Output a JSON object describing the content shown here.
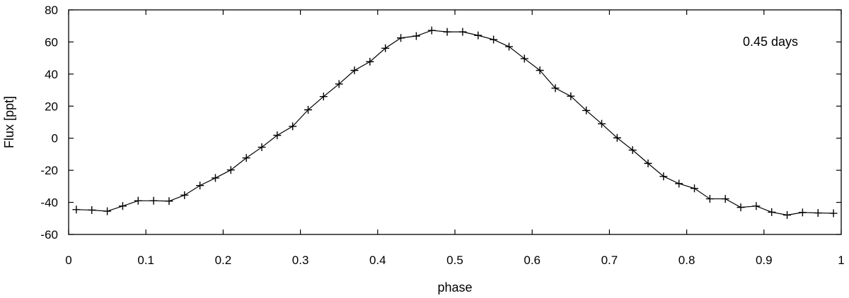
{
  "chart_data": {
    "type": "line",
    "title": "",
    "xlabel": "phase",
    "ylabel": "Flux [ppt]",
    "xlim": [
      0,
      1
    ],
    "ylim": [
      -60,
      80
    ],
    "x_ticks": [
      0,
      0.1,
      0.2,
      0.3,
      0.4,
      0.5,
      0.6,
      0.7,
      0.8,
      0.9,
      1
    ],
    "x_tick_labels": [
      "0",
      "0.1",
      "0.2",
      "0.3",
      "0.4",
      "0.5",
      "0.6",
      "0.7",
      "0.8",
      "0.9",
      "1"
    ],
    "y_ticks": [
      -60,
      -40,
      -20,
      0,
      20,
      40,
      60,
      80
    ],
    "y_tick_labels": [
      "-60",
      "-40",
      "-20",
      "0",
      "20",
      "40",
      "60",
      "80"
    ],
    "grid": false,
    "annotation": "0.45 days",
    "series": [
      {
        "marker": "plus",
        "color": "#000000",
        "x": [
          0.01,
          0.03,
          0.05,
          0.07,
          0.09,
          0.11,
          0.13,
          0.15,
          0.17,
          0.19,
          0.21,
          0.23,
          0.25,
          0.27,
          0.29,
          0.31,
          0.33,
          0.35,
          0.37,
          0.39,
          0.41,
          0.43,
          0.45,
          0.47,
          0.49,
          0.51,
          0.53,
          0.55,
          0.57,
          0.59,
          0.61,
          0.63,
          0.65,
          0.67,
          0.69,
          0.71,
          0.73,
          0.75,
          0.77,
          0.79,
          0.81,
          0.83,
          0.85,
          0.87,
          0.89,
          0.91,
          0.93,
          0.95,
          0.97,
          0.99
        ],
        "y": [
          -44.5,
          -44.8,
          -45.5,
          -42.3,
          -39.0,
          -39.0,
          -39.2,
          -35.5,
          -29.5,
          -24.8,
          -19.8,
          -12.3,
          -5.6,
          1.8,
          7.4,
          17.7,
          26.0,
          33.8,
          42.3,
          47.7,
          56.1,
          62.5,
          63.7,
          67.2,
          66.3,
          66.3,
          64.1,
          61.5,
          57.1,
          49.6,
          42.3,
          31.2,
          26.2,
          17.3,
          9.0,
          0.2,
          -7.4,
          -15.7,
          -23.8,
          -28.3,
          -31.3,
          -37.8,
          -37.8,
          -43.1,
          -42.3,
          -46.1,
          -47.9,
          -46.3,
          -46.6,
          -46.8
        ]
      }
    ]
  }
}
